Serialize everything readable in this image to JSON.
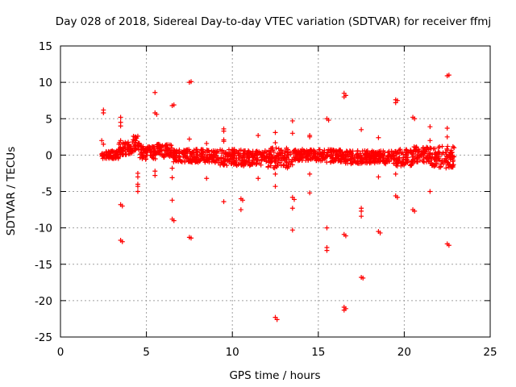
{
  "chart_data": {
    "type": "scatter",
    "title": "Day 028 of 2018, Sidereal Day-to-day VTEC variation (SDTVAR) for receiver ffmj",
    "xlabel": "GPS time / hours",
    "ylabel": "SDTVAR / TECUs",
    "xlim": [
      0,
      25
    ],
    "ylim": [
      -25,
      15
    ],
    "xticks": [
      0,
      5,
      10,
      15,
      20,
      25
    ],
    "yticks": [
      -25,
      -20,
      -15,
      -10,
      -5,
      0,
      5,
      10,
      15
    ],
    "grid": true,
    "marker": "+",
    "color": "#ff0000",
    "band": {
      "x_start": 2.4,
      "x_end": 22.9,
      "typical_range": [
        -2.0,
        2.5
      ],
      "segments": [
        {
          "x": [
            2.4,
            3.4
          ],
          "y": [
            -0.5,
            0.6
          ]
        },
        {
          "x": [
            3.4,
            4.2
          ],
          "y": [
            0.0,
            1.8
          ]
        },
        {
          "x": [
            4.2,
            4.6
          ],
          "y": [
            0.5,
            2.6
          ]
        },
        {
          "x": [
            4.6,
            5.6
          ],
          "y": [
            -0.6,
            1.2
          ]
        },
        {
          "x": [
            5.6,
            6.5
          ],
          "y": [
            -0.3,
            1.5
          ]
        },
        {
          "x": [
            6.5,
            7.5
          ],
          "y": [
            -1.0,
            0.8
          ]
        },
        {
          "x": [
            7.5,
            9.0
          ],
          "y": [
            -1.0,
            0.8
          ]
        },
        {
          "x": [
            9.0,
            10.5
          ],
          "y": [
            -1.5,
            0.8
          ]
        },
        {
          "x": [
            10.5,
            12.0
          ],
          "y": [
            -1.5,
            0.6
          ]
        },
        {
          "x": [
            12.0,
            13.5
          ],
          "y": [
            -1.8,
            1.0
          ]
        },
        {
          "x": [
            13.5,
            15.0
          ],
          "y": [
            -0.8,
            0.8
          ]
        },
        {
          "x": [
            15.0,
            16.5
          ],
          "y": [
            -1.0,
            0.8
          ]
        },
        {
          "x": [
            16.5,
            18.0
          ],
          "y": [
            -1.2,
            0.6
          ]
        },
        {
          "x": [
            18.0,
            19.5
          ],
          "y": [
            -1.2,
            0.6
          ]
        },
        {
          "x": [
            19.5,
            20.5
          ],
          "y": [
            -1.5,
            0.8
          ]
        },
        {
          "x": [
            20.5,
            21.5
          ],
          "y": [
            -1.0,
            1.2
          ]
        },
        {
          "x": [
            21.5,
            22.9
          ],
          "y": [
            -1.8,
            1.2
          ]
        }
      ]
    },
    "outliers": [
      {
        "x": 2.5,
        "y": 6.2
      },
      {
        "x": 2.5,
        "y": 5.8
      },
      {
        "x": 2.4,
        "y": 2.0
      },
      {
        "x": 2.5,
        "y": 1.5
      },
      {
        "x": 3.5,
        "y": 5.2
      },
      {
        "x": 3.5,
        "y": 4.5
      },
      {
        "x": 3.5,
        "y": 4.0
      },
      {
        "x": 3.5,
        "y": 2.0
      },
      {
        "x": 3.5,
        "y": -6.8
      },
      {
        "x": 3.6,
        "y": -7.0
      },
      {
        "x": 3.5,
        "y": -11.7
      },
      {
        "x": 3.6,
        "y": -11.9
      },
      {
        "x": 4.5,
        "y": -2.5
      },
      {
        "x": 4.5,
        "y": -3.0
      },
      {
        "x": 4.5,
        "y": -4.0
      },
      {
        "x": 4.5,
        "y": -4.3
      },
      {
        "x": 4.5,
        "y": -5.0
      },
      {
        "x": 4.5,
        "y": 2.6
      },
      {
        "x": 5.5,
        "y": 8.6
      },
      {
        "x": 5.5,
        "y": 5.8
      },
      {
        "x": 5.6,
        "y": 5.6
      },
      {
        "x": 5.5,
        "y": -2.2
      },
      {
        "x": 5.5,
        "y": -2.8
      },
      {
        "x": 6.5,
        "y": 6.8
      },
      {
        "x": 6.6,
        "y": 6.9
      },
      {
        "x": 6.5,
        "y": -1.8
      },
      {
        "x": 6.5,
        "y": -3.1
      },
      {
        "x": 6.5,
        "y": -6.2
      },
      {
        "x": 6.5,
        "y": -8.8
      },
      {
        "x": 6.6,
        "y": -9.0
      },
      {
        "x": 7.5,
        "y": 10.0
      },
      {
        "x": 7.6,
        "y": 10.1
      },
      {
        "x": 7.5,
        "y": 2.2
      },
      {
        "x": 7.5,
        "y": -11.3
      },
      {
        "x": 7.6,
        "y": -11.4
      },
      {
        "x": 8.5,
        "y": 1.6
      },
      {
        "x": 8.5,
        "y": -3.2
      },
      {
        "x": 9.5,
        "y": 3.3
      },
      {
        "x": 9.5,
        "y": 3.6
      },
      {
        "x": 9.5,
        "y": 2.1
      },
      {
        "x": 9.5,
        "y": 1.9
      },
      {
        "x": 9.5,
        "y": -6.4
      },
      {
        "x": 10.5,
        "y": -6.0
      },
      {
        "x": 10.6,
        "y": -6.2
      },
      {
        "x": 10.5,
        "y": -7.5
      },
      {
        "x": 11.5,
        "y": 2.7
      },
      {
        "x": 11.5,
        "y": -3.2
      },
      {
        "x": 12.5,
        "y": 3.1
      },
      {
        "x": 12.5,
        "y": 1.7
      },
      {
        "x": 12.5,
        "y": -2.6
      },
      {
        "x": 12.5,
        "y": -4.3
      },
      {
        "x": 12.5,
        "y": -22.3
      },
      {
        "x": 12.6,
        "y": -22.6
      },
      {
        "x": 13.5,
        "y": 4.7
      },
      {
        "x": 13.5,
        "y": 3.0
      },
      {
        "x": 13.5,
        "y": -5.8
      },
      {
        "x": 13.6,
        "y": -6.1
      },
      {
        "x": 13.5,
        "y": -7.3
      },
      {
        "x": 13.5,
        "y": -10.3
      },
      {
        "x": 14.5,
        "y": 2.7
      },
      {
        "x": 14.5,
        "y": 2.5
      },
      {
        "x": 14.5,
        "y": -2.6
      },
      {
        "x": 14.5,
        "y": -5.2
      },
      {
        "x": 15.5,
        "y": 5.0
      },
      {
        "x": 15.6,
        "y": 4.8
      },
      {
        "x": 15.5,
        "y": -10.0
      },
      {
        "x": 15.5,
        "y": -12.7
      },
      {
        "x": 15.5,
        "y": -13.1
      },
      {
        "x": 16.5,
        "y": 8.5
      },
      {
        "x": 16.5,
        "y": 8.0
      },
      {
        "x": 16.6,
        "y": 8.2
      },
      {
        "x": 16.5,
        "y": -10.9
      },
      {
        "x": 16.6,
        "y": -11.1
      },
      {
        "x": 16.5,
        "y": -20.9
      },
      {
        "x": 16.6,
        "y": -21.1
      },
      {
        "x": 16.5,
        "y": -21.3
      },
      {
        "x": 17.5,
        "y": 3.5
      },
      {
        "x": 17.5,
        "y": -7.3
      },
      {
        "x": 17.5,
        "y": -7.7
      },
      {
        "x": 17.5,
        "y": -8.4
      },
      {
        "x": 17.5,
        "y": -16.8
      },
      {
        "x": 17.6,
        "y": -16.9
      },
      {
        "x": 18.5,
        "y": 2.4
      },
      {
        "x": 18.5,
        "y": -3.0
      },
      {
        "x": 18.5,
        "y": -10.5
      },
      {
        "x": 18.6,
        "y": -10.7
      },
      {
        "x": 19.5,
        "y": 7.6
      },
      {
        "x": 19.5,
        "y": 7.2
      },
      {
        "x": 19.6,
        "y": 7.5
      },
      {
        "x": 19.5,
        "y": -2.6
      },
      {
        "x": 19.5,
        "y": -5.6
      },
      {
        "x": 19.6,
        "y": -5.8
      },
      {
        "x": 20.5,
        "y": 5.2
      },
      {
        "x": 20.6,
        "y": 5.0
      },
      {
        "x": 20.5,
        "y": -7.5
      },
      {
        "x": 20.6,
        "y": -7.7
      },
      {
        "x": 21.5,
        "y": 3.9
      },
      {
        "x": 21.5,
        "y": 2.0
      },
      {
        "x": 21.5,
        "y": 1.0
      },
      {
        "x": 21.5,
        "y": -5.0
      },
      {
        "x": 22.5,
        "y": 10.9
      },
      {
        "x": 22.6,
        "y": 11.0
      },
      {
        "x": 22.5,
        "y": 3.7
      },
      {
        "x": 22.5,
        "y": 2.5
      },
      {
        "x": 22.5,
        "y": -12.2
      },
      {
        "x": 22.6,
        "y": -12.4
      }
    ]
  }
}
